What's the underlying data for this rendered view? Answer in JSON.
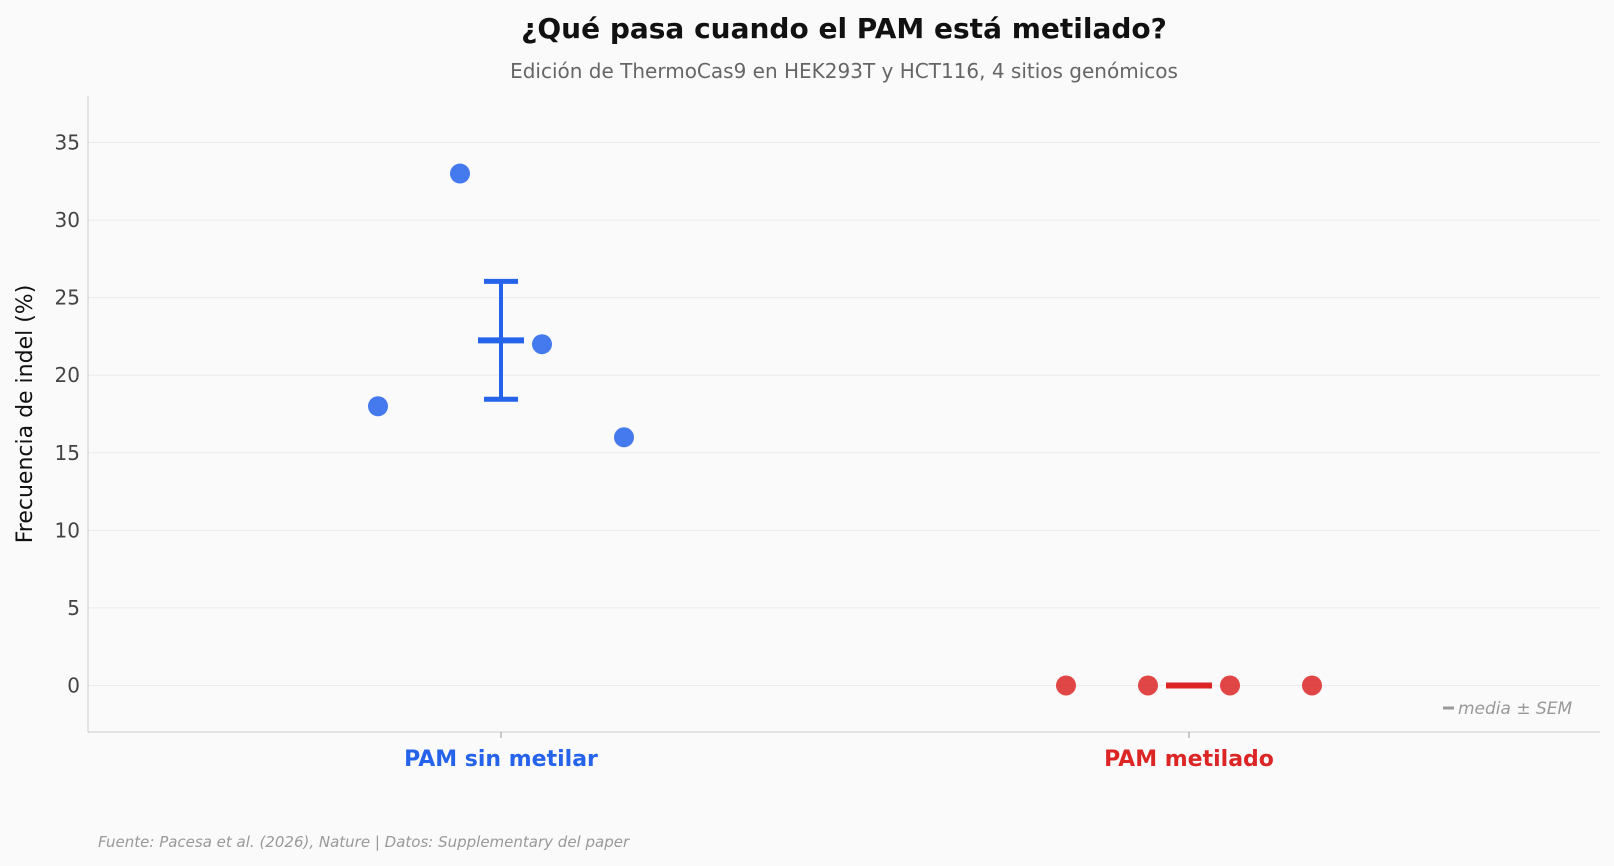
{
  "chart_data": {
    "type": "scatter",
    "title": "¿Qué pasa cuando el PAM está metilado?",
    "subtitle": "Edición de ThermoCas9 en HEK293T y HCT116, 4 sitios genómicos",
    "ylabel": "Frecuencia de indel (%)",
    "xlabel": "",
    "ylim": [
      -3,
      38
    ],
    "yticks": [
      0,
      5,
      10,
      15,
      20,
      25,
      30,
      35
    ],
    "grid": true,
    "categories": [
      "PAM sin metilar",
      "PAM metilado"
    ],
    "series": [
      {
        "name": "PAM sin metilar",
        "color": "#2563eb",
        "values": [
          18,
          33,
          22,
          16
        ],
        "mean": 22.25,
        "sem": 3.8
      },
      {
        "name": "PAM metilado",
        "color": "#dc2626",
        "values": [
          0,
          0,
          0,
          0
        ],
        "mean": 0,
        "sem": 0
      }
    ],
    "legend": {
      "text": "media ± SEM",
      "position": "bottom-right"
    },
    "source": "Fuente: Pacesa et al. (2026), Nature | Datos: Supplementary del paper"
  }
}
